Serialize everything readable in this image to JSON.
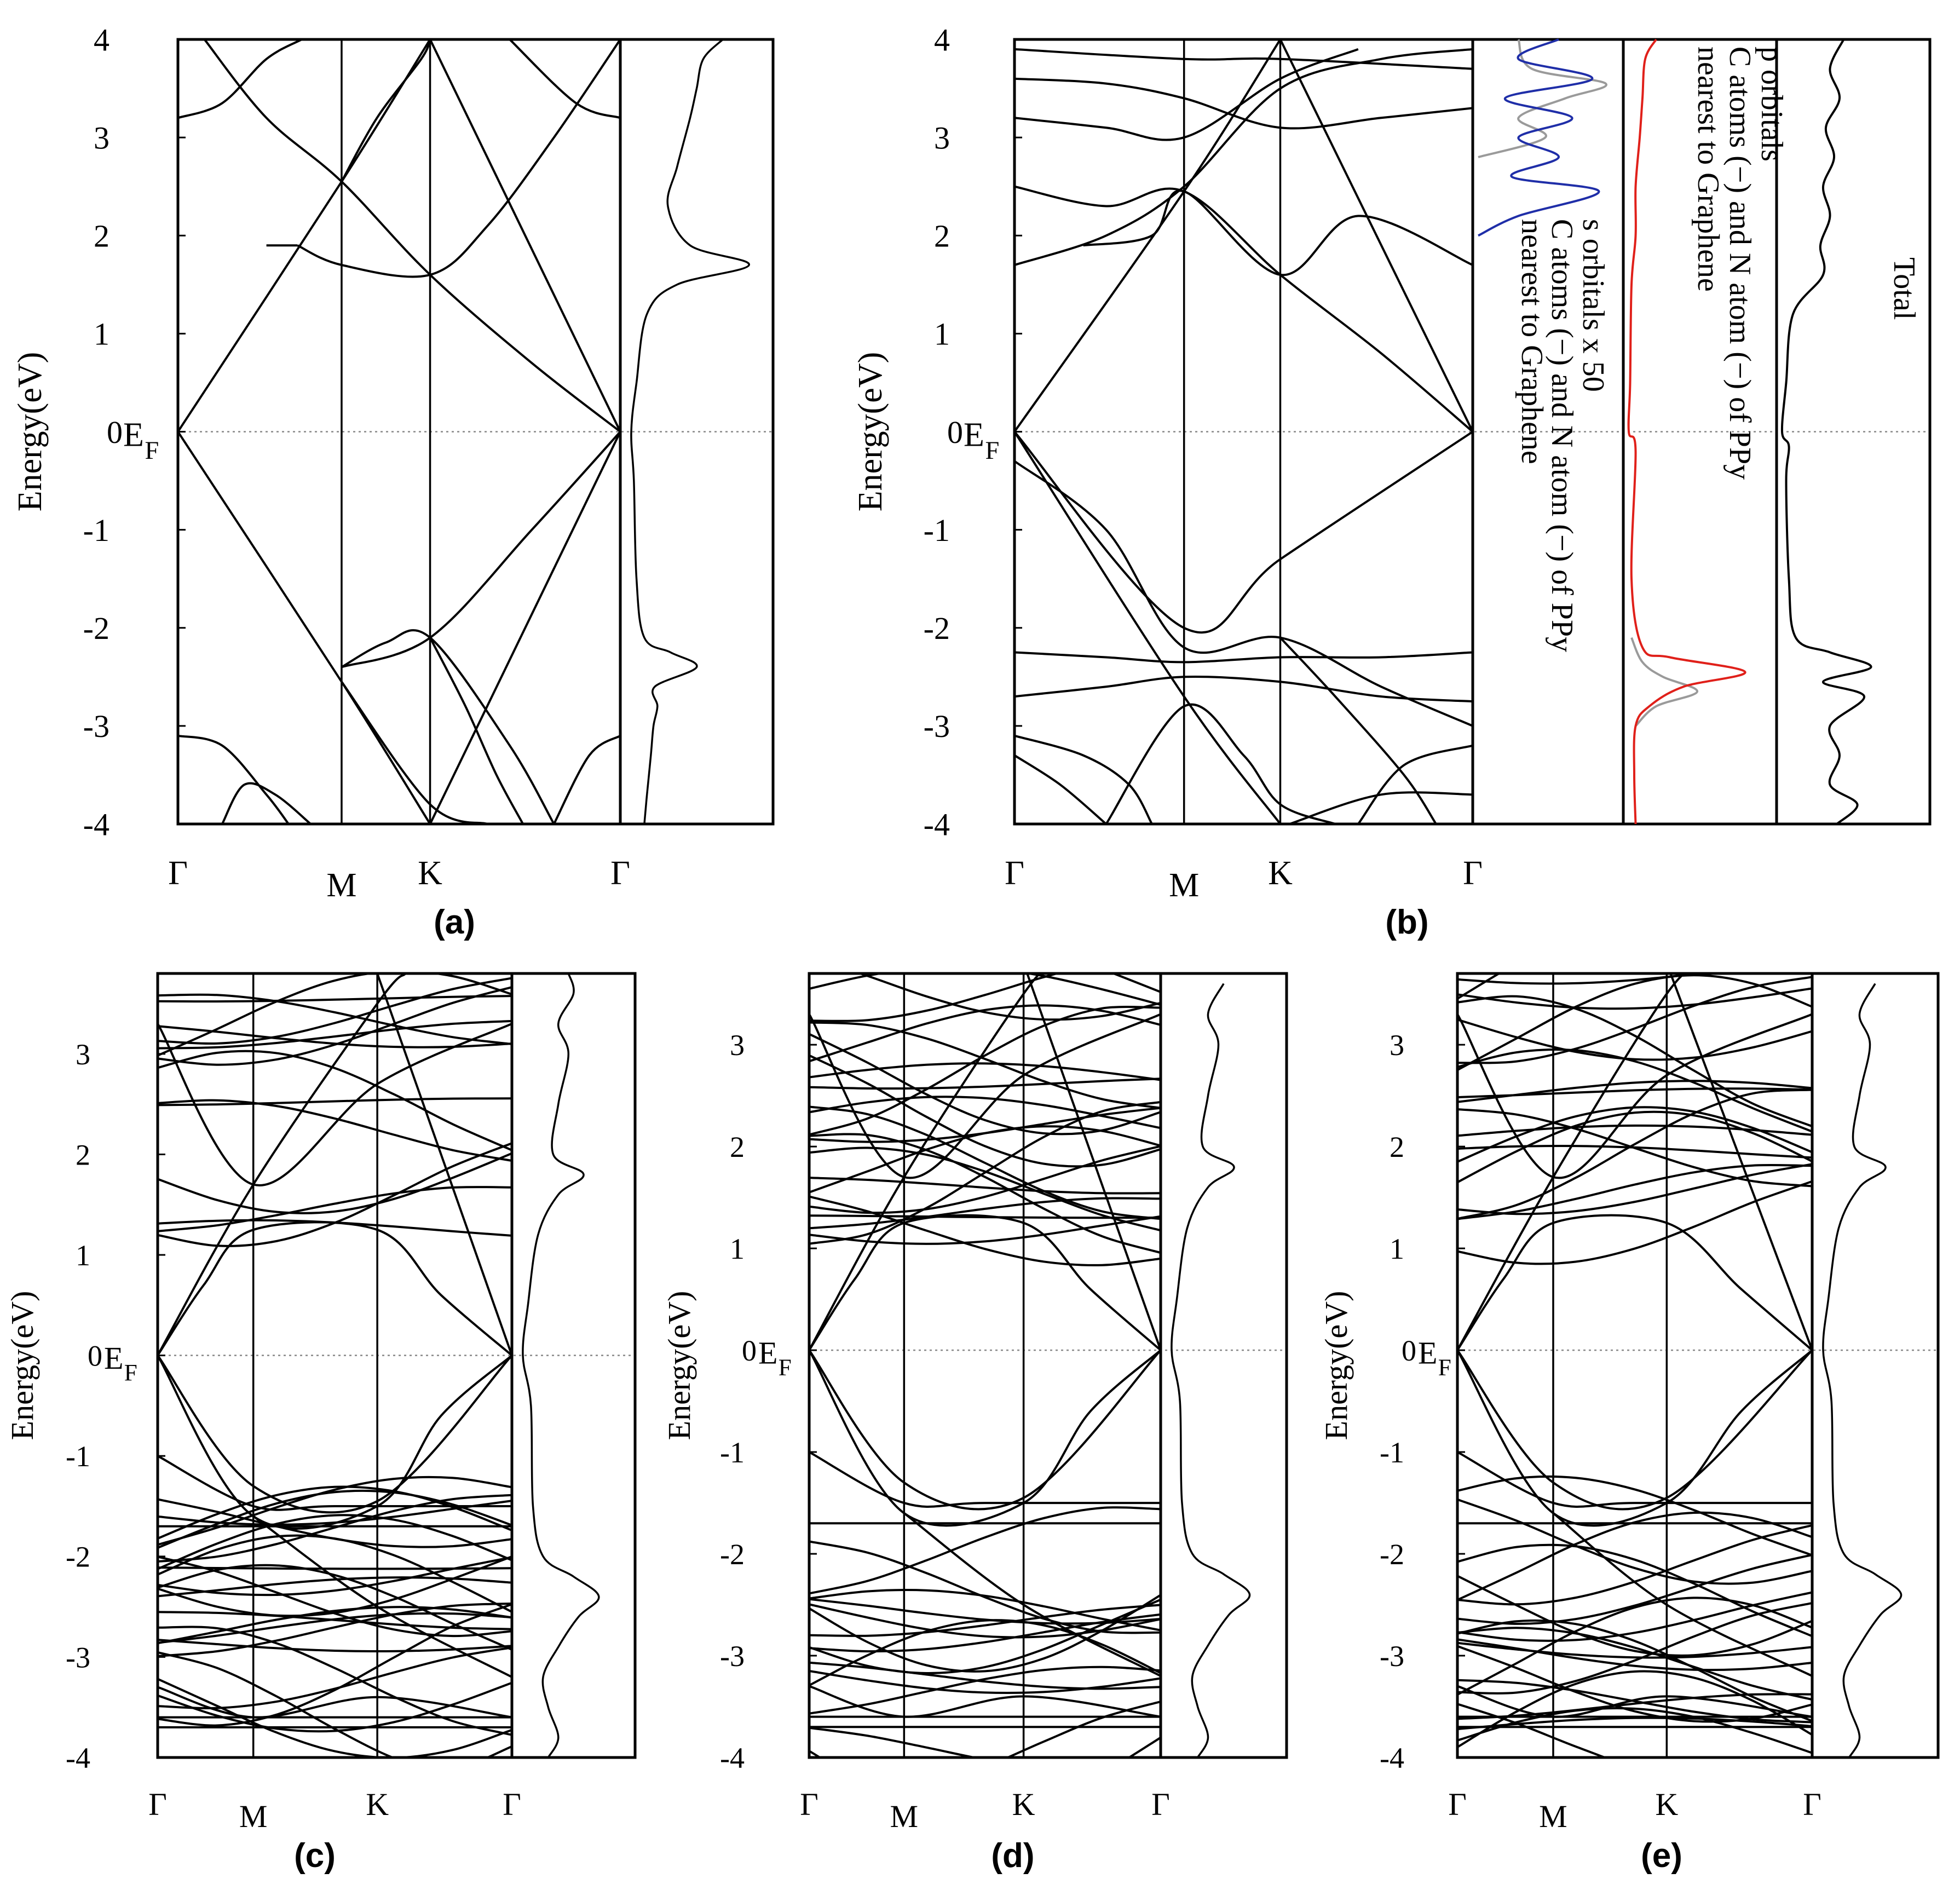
{
  "chart_data": [
    {
      "panel": "(a)",
      "type": "line",
      "ylabel": "Energy(eV)",
      "ylim": [
        -4,
        4
      ],
      "yticks": [
        "-4",
        "-3",
        "-2",
        "-1",
        "0",
        "1",
        "2",
        "3",
        "4"
      ],
      "fermi_label": "E",
      "fermi_sub": "F",
      "kpoints": [
        "Γ",
        "M",
        "K",
        "Γ"
      ],
      "kpos": [
        0,
        0.37,
        0.57,
        1
      ],
      "bands": [
        [
          [
            0,
            0
          ],
          [
            0.37,
            2.55
          ],
          [
            0.57,
            4
          ]
        ],
        [
          [
            0,
            0
          ],
          [
            0.37,
            -2.55
          ],
          [
            0.57,
            -4
          ]
        ],
        [
          [
            0.57,
            4
          ],
          [
            1,
            0
          ]
        ],
        [
          [
            0.57,
            -4
          ],
          [
            1,
            0
          ]
        ],
        [
          [
            0,
            3.2
          ],
          [
            0.1,
            3.35
          ],
          [
            0.2,
            3.8
          ],
          [
            0.28,
            4
          ]
        ],
        [
          [
            0.06,
            4
          ],
          [
            0.2,
            3.2
          ],
          [
            0.37,
            2.55
          ],
          [
            0.57,
            1.6
          ],
          [
            0.8,
            0.7
          ],
          [
            1,
            0
          ]
        ],
        [
          [
            0.75,
            4
          ],
          [
            0.9,
            3.35
          ],
          [
            1,
            3.2
          ]
        ],
        [
          [
            0.27,
            1.9
          ],
          [
            0.37,
            1.7
          ],
          [
            0.57,
            1.6
          ],
          [
            0.7,
            2.1
          ],
          [
            0.85,
            3.0
          ],
          [
            1,
            4
          ]
        ],
        [
          [
            0.2,
            1.9
          ],
          [
            0.27,
            1.9
          ]
        ],
        [
          [
            0.37,
            2.55
          ],
          [
            0.45,
            3.2
          ],
          [
            0.55,
            3.8
          ],
          [
            0.57,
            4
          ]
        ],
        [
          [
            0.37,
            -2.4
          ],
          [
            0.57,
            -2.1
          ],
          [
            0.8,
            -1.0
          ],
          [
            1,
            0
          ]
        ],
        [
          [
            0.37,
            -2.55
          ],
          [
            0.57,
            -3.8
          ],
          [
            0.7,
            -4
          ]
        ],
        [
          [
            0,
            -3.1
          ],
          [
            0.1,
            -3.2
          ],
          [
            0.2,
            -3.7
          ],
          [
            0.25,
            -4
          ]
        ],
        [
          [
            0.37,
            -2.4
          ],
          [
            0.47,
            -2.15
          ],
          [
            0.57,
            -2.1
          ],
          [
            0.75,
            -3.2
          ],
          [
            0.85,
            -4
          ]
        ],
        [
          [
            0.85,
            -4
          ],
          [
            0.93,
            -3.3
          ],
          [
            1,
            -3.1
          ]
        ],
        [
          [
            0.1,
            -4
          ],
          [
            0.15,
            -3.6
          ],
          [
            0.22,
            -3.7
          ],
          [
            0.3,
            -4
          ]
        ],
        [
          [
            0.57,
            -2.1
          ],
          [
            0.65,
            -2.8
          ],
          [
            0.72,
            -3.5
          ],
          [
            0.78,
            -4
          ]
        ]
      ],
      "dos": [
        [
          -4,
          0.1
        ],
        [
          -3.7,
          0.12
        ],
        [
          -3.3,
          0.15
        ],
        [
          -3.0,
          0.17
        ],
        [
          -2.8,
          0.2
        ],
        [
          -2.6,
          0.18
        ],
        [
          -2.4,
          0.5
        ],
        [
          -2.25,
          0.3
        ],
        [
          -2.1,
          0.1
        ],
        [
          -1.5,
          0.04
        ],
        [
          -0.5,
          0.02
        ],
        [
          0,
          0.0
        ],
        [
          0.5,
          0.04
        ],
        [
          1.2,
          0.12
        ],
        [
          1.5,
          0.35
        ],
        [
          1.7,
          0.9
        ],
        [
          1.9,
          0.45
        ],
        [
          2.3,
          0.28
        ],
        [
          2.7,
          0.35
        ],
        [
          3.2,
          0.45
        ],
        [
          3.5,
          0.5
        ],
        [
          3.8,
          0.55
        ],
        [
          4,
          0.7
        ]
      ]
    },
    {
      "panel": "(b)",
      "type": "line",
      "ylabel": "Energy(eV)",
      "ylim": [
        -4,
        4
      ],
      "yticks": [
        "-4",
        "-3",
        "-2",
        "-1",
        "0",
        "1",
        "2",
        "3",
        "4"
      ],
      "fermi_label": "E",
      "fermi_sub": "F",
      "kpoints": [
        "Γ",
        "M",
        "K",
        "Γ"
      ],
      "kpos": [
        0,
        0.37,
        0.58,
        1
      ],
      "pdos_labels": {
        "s_line1": "s orbitals x 50",
        "s_line2": "C atoms (−) and N atom (−) of PPy",
        "s_line3": "nearest to Graphene",
        "p_line1": "p orbitals",
        "p_line2": "C atoms (−) and N atom (−) of PPy",
        "p_line3": "nearest to Graphene",
        "total": "Total"
      },
      "colors": {
        "s_pdos": "#1f2ea8",
        "p_pdos": "#e0201a",
        "n_pdos": "#9a9a9a"
      },
      "bands": [
        [
          [
            0,
            0
          ],
          [
            0.37,
            2.45
          ],
          [
            0.58,
            4
          ]
        ],
        [
          [
            0,
            0
          ],
          [
            0.37,
            -2.0
          ],
          [
            0.58,
            -1.3
          ],
          [
            1,
            0
          ]
        ],
        [
          [
            0.58,
            4
          ],
          [
            1,
            0
          ]
        ],
        [
          [
            0.58,
            -4
          ],
          [
            0.37,
            -2.7
          ],
          [
            0,
            0
          ]
        ],
        [
          [
            0,
            -0.3
          ],
          [
            0.2,
            -1.0
          ],
          [
            0.37,
            -2.2
          ],
          [
            0.58,
            -2.1
          ],
          [
            0.8,
            -2.6
          ],
          [
            1,
            -3.0
          ]
        ],
        [
          [
            0,
            1.7
          ],
          [
            0.2,
            2.0
          ],
          [
            0.37,
            2.5
          ],
          [
            0.58,
            3.5
          ],
          [
            0.8,
            3.8
          ],
          [
            1,
            3.9
          ]
        ],
        [
          [
            0,
            3.2
          ],
          [
            0.2,
            3.1
          ],
          [
            0.37,
            3.0
          ],
          [
            0.58,
            3.6
          ],
          [
            0.75,
            3.9
          ]
        ],
        [
          [
            0,
            3.6
          ],
          [
            0.2,
            3.55
          ],
          [
            0.37,
            3.4
          ],
          [
            0.58,
            3.1
          ],
          [
            0.8,
            3.2
          ],
          [
            1,
            3.3
          ]
        ],
        [
          [
            0,
            3.9
          ],
          [
            0.37,
            3.8
          ],
          [
            0.58,
            3.8
          ],
          [
            1,
            3.7
          ]
        ],
        [
          [
            0,
            2.5
          ],
          [
            0.2,
            2.3
          ],
          [
            0.37,
            2.45
          ],
          [
            0.58,
            1.6
          ],
          [
            0.8,
            0.8
          ],
          [
            1,
            0
          ]
        ],
        [
          [
            0.15,
            1.9
          ],
          [
            0.3,
            2.0
          ],
          [
            0.37,
            2.45
          ],
          [
            0.58,
            1.6
          ],
          [
            0.75,
            2.2
          ],
          [
            1,
            1.7
          ]
        ],
        [
          [
            0,
            -2.25
          ],
          [
            0.2,
            -2.3
          ],
          [
            0.37,
            -2.35
          ],
          [
            0.58,
            -2.3
          ],
          [
            0.8,
            -2.3
          ],
          [
            1,
            -2.25
          ]
        ],
        [
          [
            0,
            -2.7
          ],
          [
            0.2,
            -2.6
          ],
          [
            0.37,
            -2.5
          ],
          [
            0.58,
            -2.55
          ],
          [
            0.8,
            -2.7
          ],
          [
            1,
            -2.75
          ]
        ],
        [
          [
            0,
            -3.1
          ],
          [
            0.15,
            -3.3
          ],
          [
            0.25,
            -3.6
          ],
          [
            0.3,
            -4
          ]
        ],
        [
          [
            0.2,
            -4
          ],
          [
            0.37,
            -2.8
          ],
          [
            0.5,
            -3.3
          ],
          [
            0.58,
            -3.8
          ],
          [
            0.7,
            -4
          ]
        ],
        [
          [
            0.58,
            -2.1
          ],
          [
            0.7,
            -2.7
          ],
          [
            0.85,
            -3.5
          ],
          [
            0.92,
            -4
          ]
        ],
        [
          [
            0.75,
            -4
          ],
          [
            0.85,
            -3.4
          ],
          [
            1,
            -3.2
          ]
        ],
        [
          [
            0.6,
            -4
          ],
          [
            0.8,
            -3.7
          ],
          [
            1,
            -3.7
          ]
        ],
        [
          [
            0,
            -3.3
          ],
          [
            0.1,
            -3.6
          ],
          [
            0.2,
            -4
          ]
        ]
      ],
      "dos_total": [
        [
          -4,
          0.4
        ],
        [
          -3.8,
          0.55
        ],
        [
          -3.6,
          0.35
        ],
        [
          -3.3,
          0.42
        ],
        [
          -3.0,
          0.35
        ],
        [
          -2.7,
          0.6
        ],
        [
          -2.55,
          0.3
        ],
        [
          -2.4,
          0.65
        ],
        [
          -2.25,
          0.35
        ],
        [
          -2.1,
          0.1
        ],
        [
          -1.5,
          0.05
        ],
        [
          -0.5,
          0.03
        ],
        [
          -0.15,
          0.05
        ],
        [
          0,
          0.0
        ],
        [
          0.5,
          0.03
        ],
        [
          1.2,
          0.08
        ],
        [
          1.6,
          0.3
        ],
        [
          1.9,
          0.28
        ],
        [
          2.2,
          0.35
        ],
        [
          2.5,
          0.3
        ],
        [
          2.8,
          0.38
        ],
        [
          3.1,
          0.32
        ],
        [
          3.4,
          0.42
        ],
        [
          3.7,
          0.35
        ],
        [
          4,
          0.45
        ]
      ],
      "dos_p": [
        [
          -4,
          0.05
        ],
        [
          -3.5,
          0.04
        ],
        [
          -3.0,
          0.05
        ],
        [
          -2.8,
          0.15
        ],
        [
          -2.6,
          0.4
        ],
        [
          -2.45,
          0.85
        ],
        [
          -2.3,
          0.3
        ],
        [
          -2.2,
          0.1
        ],
        [
          -1.5,
          0.02
        ],
        [
          -0.2,
          0.05
        ],
        [
          0,
          0.0
        ],
        [
          0.5,
          0.01
        ],
        [
          1.5,
          0.02
        ],
        [
          2.0,
          0.05
        ],
        [
          2.5,
          0.05
        ],
        [
          3.0,
          0.08
        ],
        [
          3.4,
          0.1
        ],
        [
          3.8,
          0.12
        ],
        [
          4,
          0.2
        ]
      ],
      "dos_pn": [
        [
          -3.0,
          0.05
        ],
        [
          -2.8,
          0.2
        ],
        [
          -2.65,
          0.5
        ],
        [
          -2.5,
          0.25
        ],
        [
          -2.35,
          0.1
        ],
        [
          -2.1,
          0.02
        ]
      ],
      "dos_s": [
        [
          2.0,
          0.0
        ],
        [
          2.2,
          0.3
        ],
        [
          2.45,
          0.9
        ],
        [
          2.6,
          0.25
        ],
        [
          2.8,
          0.6
        ],
        [
          3.0,
          0.3
        ],
        [
          3.2,
          0.7
        ],
        [
          3.4,
          0.2
        ],
        [
          3.6,
          0.85
        ],
        [
          3.8,
          0.3
        ],
        [
          4,
          0.6
        ]
      ],
      "dos_sn": [
        [
          2.8,
          0.0
        ],
        [
          3.0,
          0.5
        ],
        [
          3.2,
          0.3
        ],
        [
          3.4,
          0.65
        ],
        [
          3.55,
          0.95
        ],
        [
          3.7,
          0.4
        ],
        [
          4,
          0.3
        ]
      ]
    },
    {
      "panel": "(c)",
      "type": "line",
      "ylabel": "Energy(eV)",
      "ylim": [
        -4,
        3.8
      ],
      "yticks": [
        "-4",
        "-3",
        "-2",
        "-1",
        "0",
        "1",
        "2",
        "3"
      ],
      "fermi_label": "E",
      "fermi_sub": "F",
      "kpoints": [
        "Γ",
        "M",
        "K",
        "Γ"
      ],
      "kpos": [
        0,
        0.27,
        0.62,
        1
      ]
    },
    {
      "panel": "(d)",
      "type": "line",
      "ylabel": "Energy(eV)",
      "ylim": [
        -4,
        3.7
      ],
      "yticks": [
        "-4",
        "-3",
        "-2",
        "-1",
        "0",
        "1",
        "2",
        "3"
      ],
      "fermi_label": "E",
      "fermi_sub": "F",
      "kpoints": [
        "Γ",
        "M",
        "K",
        "Γ"
      ],
      "kpos": [
        0,
        0.27,
        0.61,
        1
      ]
    },
    {
      "panel": "(e)",
      "type": "line",
      "ylabel": "Energy(eV)",
      "ylim": [
        -4,
        3.7
      ],
      "yticks": [
        "-4",
        "-3",
        "-2",
        "-1",
        "0",
        "1",
        "2",
        "3"
      ],
      "fermi_label": "E",
      "fermi_sub": "F",
      "kpoints": [
        "Γ",
        "M",
        "K",
        "Γ"
      ],
      "kpos": [
        0,
        0.27,
        0.59,
        1
      ]
    }
  ]
}
